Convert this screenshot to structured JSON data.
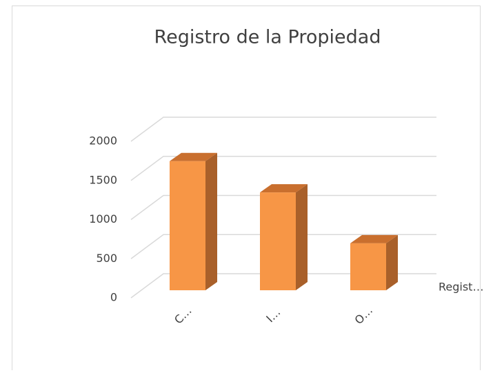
{
  "chart_data": {
    "type": "bar3d",
    "title": "Registro de la Propiedad",
    "categories": [
      "C…",
      "I…",
      "O…"
    ],
    "series": [
      {
        "name": "Regist…",
        "color": "#f79646",
        "values": [
          1650,
          1250,
          600
        ]
      }
    ],
    "ylim": [
      0,
      2000
    ],
    "yticks": [
      0,
      500,
      1000,
      1500,
      2000
    ],
    "grid": true
  }
}
